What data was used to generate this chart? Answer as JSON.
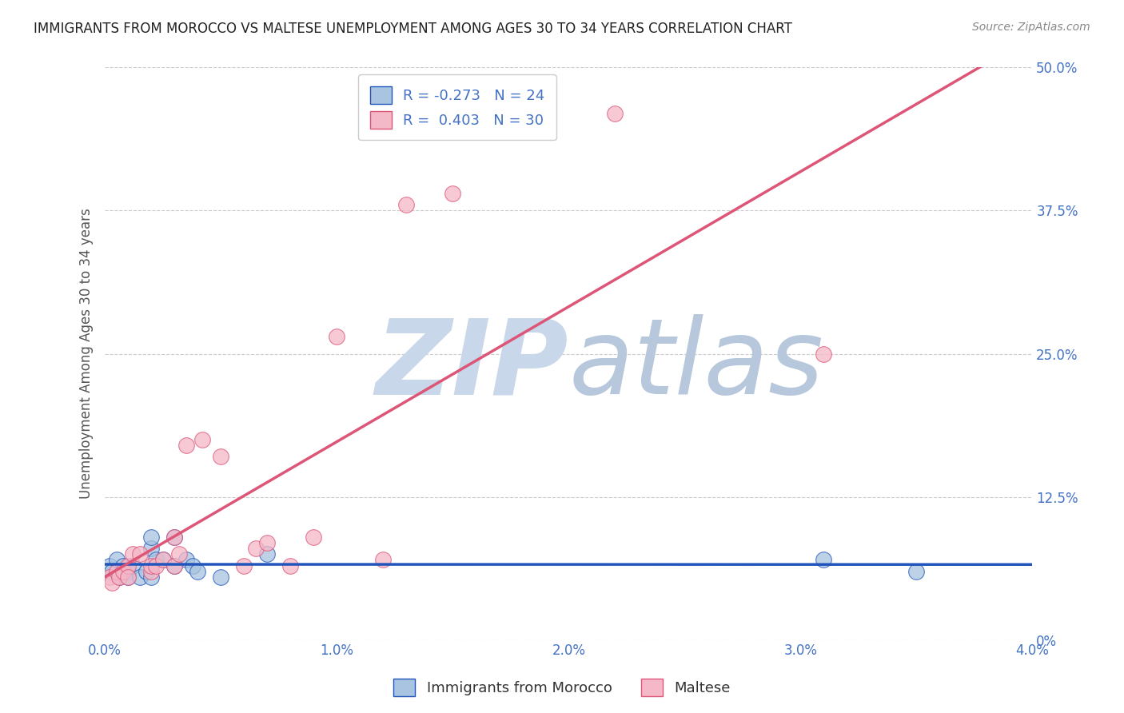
{
  "title": "IMMIGRANTS FROM MOROCCO VS MALTESE UNEMPLOYMENT AMONG AGES 30 TO 34 YEARS CORRELATION CHART",
  "source": "Source: ZipAtlas.com",
  "xlabel": "",
  "ylabel": "Unemployment Among Ages 30 to 34 years",
  "xlim": [
    0.0,
    0.04
  ],
  "ylim": [
    0.0,
    0.5
  ],
  "xticks": [
    0.0,
    0.01,
    0.02,
    0.03,
    0.04
  ],
  "xticklabels": [
    "0.0%",
    "1.0%",
    "2.0%",
    "3.0%",
    "4.0%"
  ],
  "yticks": [
    0.0,
    0.125,
    0.25,
    0.375,
    0.5
  ],
  "yticklabels": [
    "0%",
    "12.5%",
    "25.0%",
    "37.5%",
    "50.0%"
  ],
  "blue_R": -0.273,
  "blue_N": 24,
  "pink_R": 0.403,
  "pink_N": 30,
  "blue_color": "#a8c4e0",
  "blue_line_color": "#2255bb",
  "pink_color": "#f4b8c8",
  "pink_line_color": "#dd5577",
  "background_color": "#ffffff",
  "grid_color": "#cccccc",
  "title_color": "#222222",
  "axis_label_color": "#555555",
  "tick_label_color": "#4472c4",
  "legend_R_color": "#4472c4",
  "watermark_color": "#d5e2ef",
  "blue_x": [
    0.0002,
    0.0003,
    0.0005,
    0.0006,
    0.0008,
    0.001,
    0.001,
    0.0012,
    0.0015,
    0.0018,
    0.002,
    0.002,
    0.002,
    0.0022,
    0.0025,
    0.003,
    0.003,
    0.0035,
    0.0038,
    0.004,
    0.005,
    0.007,
    0.031,
    0.035
  ],
  "blue_y": [
    0.065,
    0.06,
    0.07,
    0.055,
    0.065,
    0.06,
    0.055,
    0.065,
    0.055,
    0.06,
    0.055,
    0.08,
    0.09,
    0.07,
    0.07,
    0.065,
    0.09,
    0.07,
    0.065,
    0.06,
    0.055,
    0.075,
    0.07,
    0.06
  ],
  "pink_x": [
    0.0002,
    0.0003,
    0.0005,
    0.0006,
    0.0008,
    0.001,
    0.001,
    0.0012,
    0.0015,
    0.002,
    0.002,
    0.0022,
    0.0025,
    0.003,
    0.003,
    0.0032,
    0.0035,
    0.0042,
    0.005,
    0.006,
    0.0065,
    0.007,
    0.008,
    0.009,
    0.01,
    0.012,
    0.013,
    0.015,
    0.022,
    0.031
  ],
  "pink_y": [
    0.055,
    0.05,
    0.06,
    0.055,
    0.06,
    0.065,
    0.055,
    0.075,
    0.075,
    0.06,
    0.065,
    0.065,
    0.07,
    0.065,
    0.09,
    0.075,
    0.17,
    0.175,
    0.16,
    0.065,
    0.08,
    0.085,
    0.065,
    0.09,
    0.265,
    0.07,
    0.38,
    0.39,
    0.46,
    0.25
  ]
}
